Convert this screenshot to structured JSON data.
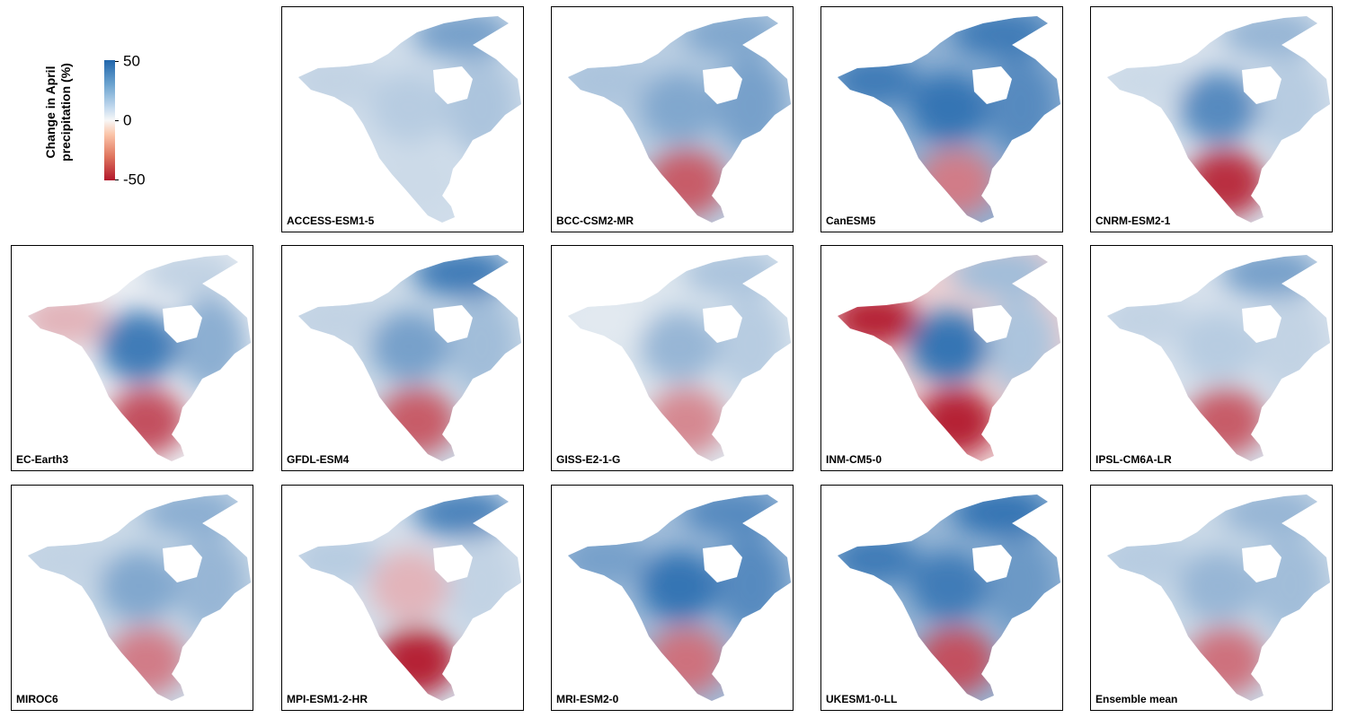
{
  "legend": {
    "title_line1": "Change in April",
    "title_line2": "precipitation (%)",
    "tick_max": "50",
    "tick_mid": "0",
    "tick_min": "-50",
    "colors": [
      "#2166ac",
      "#f7f7f7",
      "#b2182b"
    ]
  },
  "panels": [
    {
      "label": "ACCESS-ESM1-5",
      "east": 0.35,
      "west": 0.25,
      "south": 0.2,
      "north": 0.6,
      "center": 0.3
    },
    {
      "label": "BCC-CSM2-MR",
      "east": 0.6,
      "west": 0.35,
      "south": -0.7,
      "north": 0.55,
      "center": 0.55
    },
    {
      "label": "CanESM5",
      "east": 0.75,
      "west": 0.85,
      "south": -0.55,
      "north": 0.85,
      "center": 0.9
    },
    {
      "label": "CNRM-ESM2-1",
      "east": 0.3,
      "west": 0.2,
      "south": -0.9,
      "north": 0.45,
      "center": 0.75
    },
    {
      "label": "EC-Earth3",
      "east": 0.5,
      "west": -0.3,
      "south": -0.75,
      "north": 0.25,
      "center": 0.85
    },
    {
      "label": "GFDL-ESM4",
      "east": 0.4,
      "west": 0.25,
      "south": -0.7,
      "north": 0.85,
      "center": 0.6
    },
    {
      "label": "GISS-E2-1-G",
      "east": 0.3,
      "west": 0.1,
      "south": -0.5,
      "north": 0.35,
      "center": 0.45
    },
    {
      "label": "INM-CM5-0",
      "east": 0.35,
      "west": -0.95,
      "south": -0.95,
      "north": 0.4,
      "center": 0.9
    },
    {
      "label": "IPSL-CM6A-LR",
      "east": 0.25,
      "west": 0.25,
      "south": -0.7,
      "north": 0.6,
      "center": 0.3
    },
    {
      "label": "MIROC6",
      "east": 0.45,
      "west": 0.25,
      "south": -0.55,
      "north": 0.5,
      "center": 0.55
    },
    {
      "label": "MPI-ESM1-2-HR",
      "east": 0.25,
      "west": 0.3,
      "south": -0.95,
      "north": 0.8,
      "center": -0.3
    },
    {
      "label": "MRI-ESM2-0",
      "east": 0.75,
      "west": 0.6,
      "south": -0.6,
      "north": 0.75,
      "center": 0.9
    },
    {
      "label": "UKESM1-0-LL",
      "east": 0.65,
      "west": 0.85,
      "south": -0.75,
      "north": 0.9,
      "center": 0.85
    },
    {
      "label": "Ensemble mean",
      "east": 0.4,
      "west": 0.3,
      "south": -0.6,
      "north": 0.45,
      "center": 0.45
    }
  ]
}
